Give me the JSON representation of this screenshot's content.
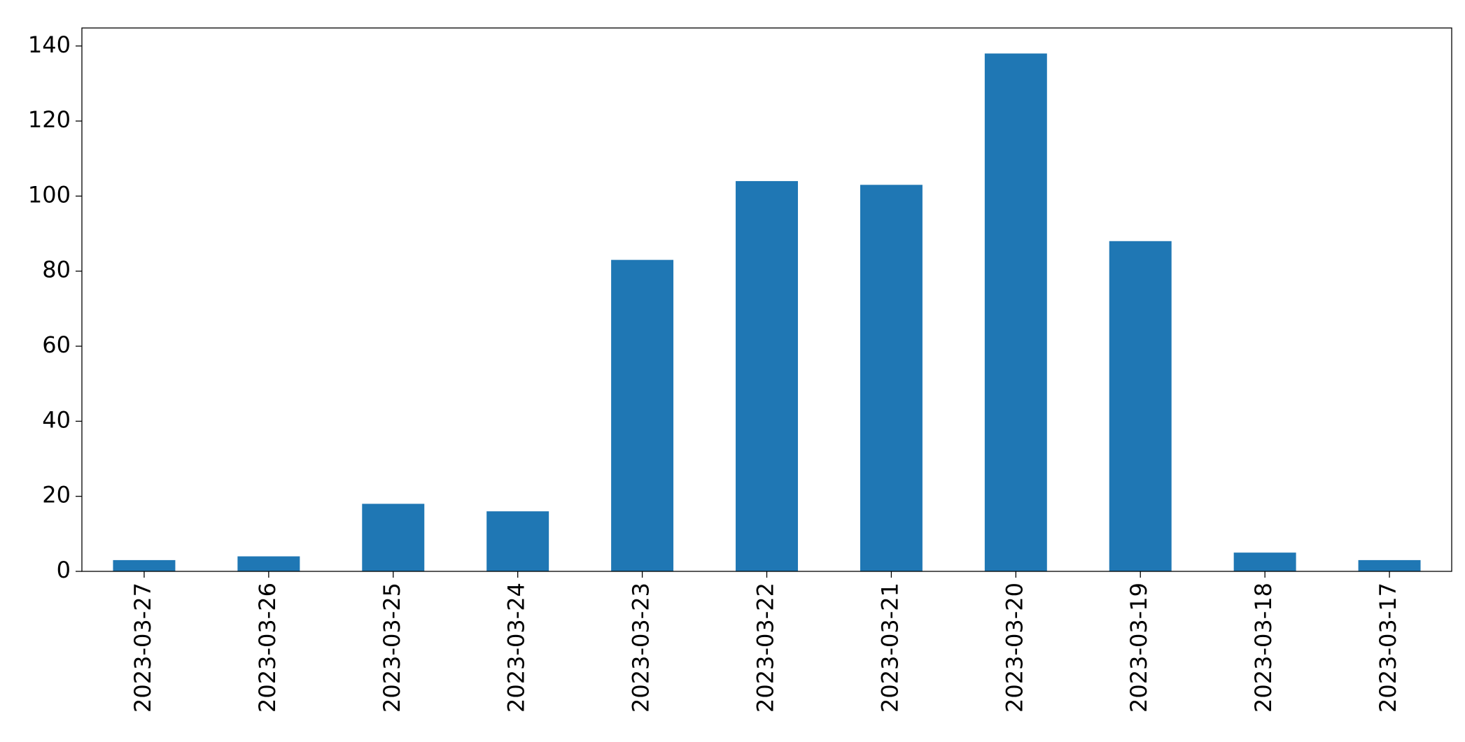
{
  "chart_data": {
    "type": "bar",
    "categories": [
      "2023-03-27",
      "2023-03-26",
      "2023-03-25",
      "2023-03-24",
      "2023-03-23",
      "2023-03-22",
      "2023-03-21",
      "2023-03-20",
      "2023-03-19",
      "2023-03-18",
      "2023-03-17"
    ],
    "values": [
      3,
      4,
      18,
      16,
      83,
      104,
      103,
      138,
      88,
      5,
      3
    ],
    "color": "#1f77b4",
    "ylim": [
      0,
      144.8
    ],
    "yticks": [
      0,
      20,
      40,
      60,
      80,
      100,
      120,
      140
    ],
    "grid": false
  }
}
